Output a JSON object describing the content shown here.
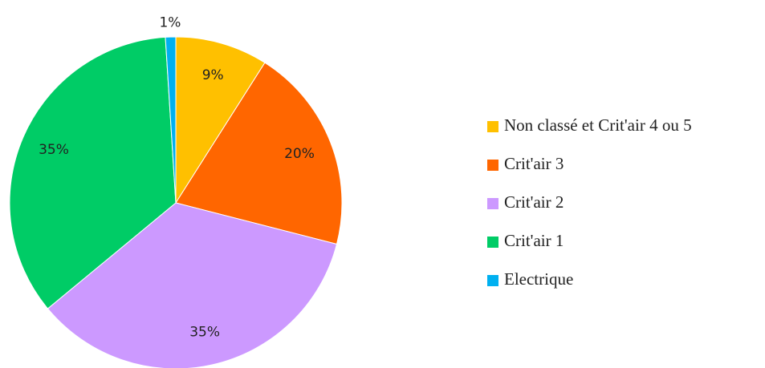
{
  "chart_data": {
    "type": "pie",
    "categories": [
      "Non classé et Crit'air 4 ou 5",
      "Crit'air 3",
      "Crit'air 2",
      "Crit'air 1",
      "Electrique"
    ],
    "values": [
      9,
      20,
      35,
      35,
      1
    ],
    "value_labels": [
      "9%",
      "20%",
      "35%",
      "35%",
      "1%"
    ],
    "colors": [
      "#ffc000",
      "#ff6600",
      "#cc99ff",
      "#00cc66",
      "#00b0f0"
    ],
    "legend": "right"
  }
}
